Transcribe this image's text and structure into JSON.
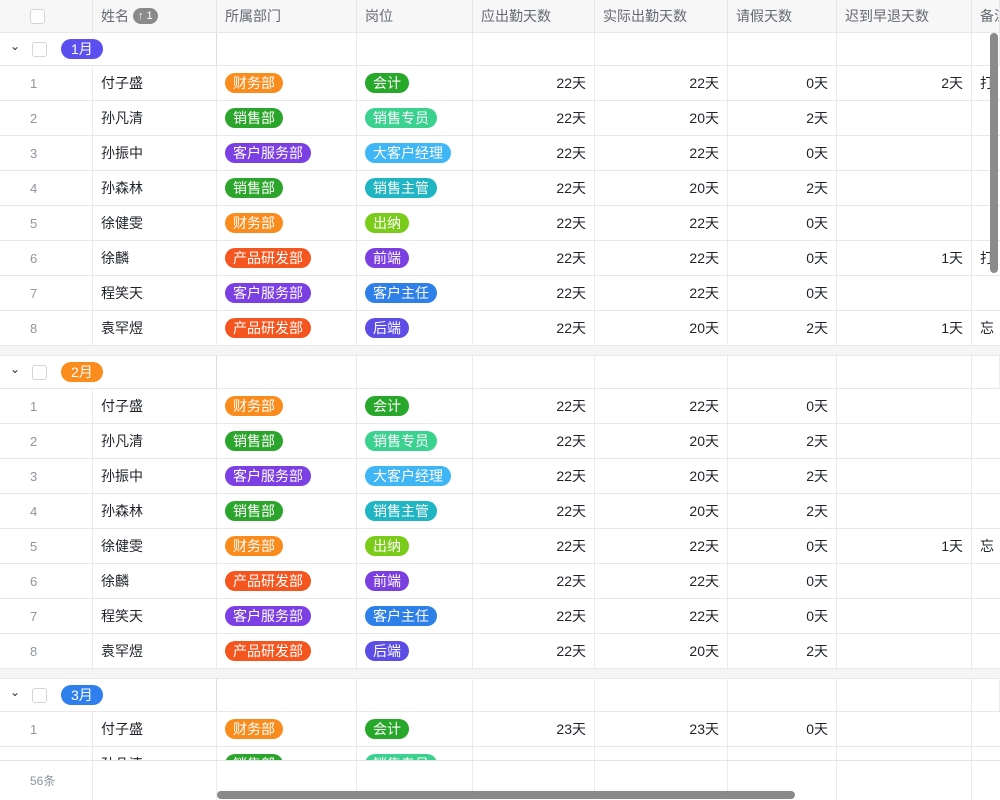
{
  "header": {
    "name": "姓名",
    "sort_badge": "↑ 1",
    "columns": [
      "所属部门",
      "岗位",
      "应出勤天数",
      "实际出勤天数",
      "请假天数",
      "迟到早退天数",
      "备注"
    ]
  },
  "tag_colors": {
    "财务部": "#fa8c1e",
    "销售部": "#2ba52b",
    "客户服务部": "#7b3fe4",
    "产品研发部": "#f5561f",
    "会计": "#27a82a",
    "销售专员": "#3bd18f",
    "大客户经理": "#3fb6f5",
    "销售主管": "#1fb5c2",
    "出纳": "#7acb1a",
    "前端": "#7b3fe0",
    "客户主任": "#2f7fe8",
    "后端": "#5b4de6"
  },
  "groups": [
    {
      "label": "1月",
      "color": "#5b4ff0",
      "rows": [
        {
          "idx": "1",
          "name": "付子盛",
          "dept": "财务部",
          "post": "会计",
          "due": "22天",
          "actual": "22天",
          "leave": "0天",
          "late": "2天",
          "note": "打"
        },
        {
          "idx": "2",
          "name": "孙凡清",
          "dept": "销售部",
          "post": "销售专员",
          "due": "22天",
          "actual": "20天",
          "leave": "2天",
          "late": "",
          "note": ""
        },
        {
          "idx": "3",
          "name": "孙振中",
          "dept": "客户服务部",
          "post": "大客户经理",
          "due": "22天",
          "actual": "22天",
          "leave": "0天",
          "late": "",
          "note": ""
        },
        {
          "idx": "4",
          "name": "孙森林",
          "dept": "销售部",
          "post": "销售主管",
          "due": "22天",
          "actual": "20天",
          "leave": "2天",
          "late": "",
          "note": ""
        },
        {
          "idx": "5",
          "name": "徐健雯",
          "dept": "财务部",
          "post": "出纳",
          "due": "22天",
          "actual": "22天",
          "leave": "0天",
          "late": "",
          "note": ""
        },
        {
          "idx": "6",
          "name": "徐麟",
          "dept": "产品研发部",
          "post": "前端",
          "due": "22天",
          "actual": "22天",
          "leave": "0天",
          "late": "1天",
          "note": "打"
        },
        {
          "idx": "7",
          "name": "程笑天",
          "dept": "客户服务部",
          "post": "客户主任",
          "due": "22天",
          "actual": "22天",
          "leave": "0天",
          "late": "",
          "note": ""
        },
        {
          "idx": "8",
          "name": "袁罕煜",
          "dept": "产品研发部",
          "post": "后端",
          "due": "22天",
          "actual": "20天",
          "leave": "2天",
          "late": "1天",
          "note": "忘"
        }
      ]
    },
    {
      "label": "2月",
      "color": "#fa8c1e",
      "rows": [
        {
          "idx": "1",
          "name": "付子盛",
          "dept": "财务部",
          "post": "会计",
          "due": "22天",
          "actual": "22天",
          "leave": "0天",
          "late": "",
          "note": ""
        },
        {
          "idx": "2",
          "name": "孙凡清",
          "dept": "销售部",
          "post": "销售专员",
          "due": "22天",
          "actual": "20天",
          "leave": "2天",
          "late": "",
          "note": ""
        },
        {
          "idx": "3",
          "name": "孙振中",
          "dept": "客户服务部",
          "post": "大客户经理",
          "due": "22天",
          "actual": "20天",
          "leave": "2天",
          "late": "",
          "note": ""
        },
        {
          "idx": "4",
          "name": "孙森林",
          "dept": "销售部",
          "post": "销售主管",
          "due": "22天",
          "actual": "20天",
          "leave": "2天",
          "late": "",
          "note": ""
        },
        {
          "idx": "5",
          "name": "徐健雯",
          "dept": "财务部",
          "post": "出纳",
          "due": "22天",
          "actual": "22天",
          "leave": "0天",
          "late": "1天",
          "note": "忘"
        },
        {
          "idx": "6",
          "name": "徐麟",
          "dept": "产品研发部",
          "post": "前端",
          "due": "22天",
          "actual": "22天",
          "leave": "0天",
          "late": "",
          "note": ""
        },
        {
          "idx": "7",
          "name": "程笑天",
          "dept": "客户服务部",
          "post": "客户主任",
          "due": "22天",
          "actual": "22天",
          "leave": "0天",
          "late": "",
          "note": ""
        },
        {
          "idx": "8",
          "name": "袁罕煜",
          "dept": "产品研发部",
          "post": "后端",
          "due": "22天",
          "actual": "20天",
          "leave": "2天",
          "late": "",
          "note": ""
        }
      ]
    },
    {
      "label": "3月",
      "color": "#2f80ed",
      "rows": [
        {
          "idx": "1",
          "name": "付子盛",
          "dept": "财务部",
          "post": "会计",
          "due": "23天",
          "actual": "23天",
          "leave": "0天",
          "late": "",
          "note": ""
        },
        {
          "idx": "2",
          "name": "孙凡清",
          "dept": "销售部",
          "post": "销售专员",
          "due": "",
          "actual": "",
          "leave": "",
          "late": "",
          "note": ""
        }
      ]
    }
  ],
  "footer": {
    "count": "56条"
  }
}
